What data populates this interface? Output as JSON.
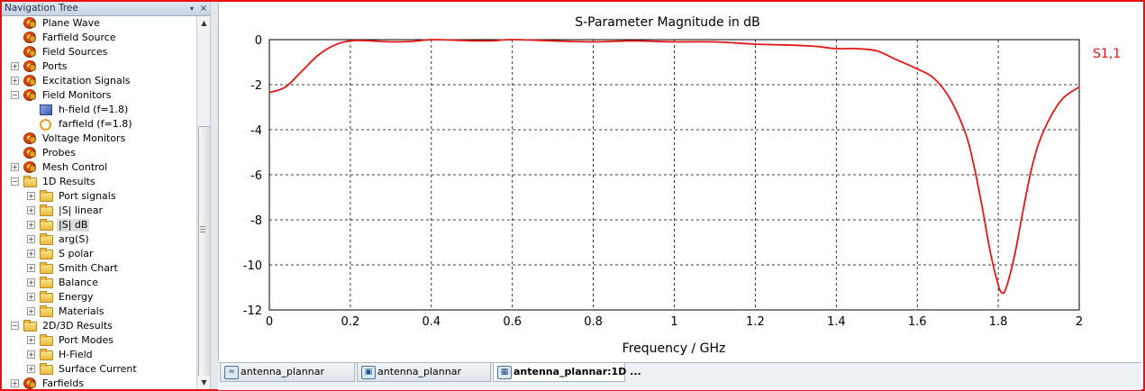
{
  "navigation": {
    "title": "Navigation Tree",
    "menu_glyph": "▾",
    "close_glyph": "×",
    "items": [
      {
        "label": "Plane Wave",
        "icon": "gear-icon",
        "level": 1,
        "expander": ""
      },
      {
        "label": "Farfield Source",
        "icon": "gear-icon",
        "level": 1,
        "expander": ""
      },
      {
        "label": "Field Sources",
        "icon": "gear-icon",
        "level": 1,
        "expander": ""
      },
      {
        "label": "Ports",
        "icon": "gear-icon",
        "level": 1,
        "expander": "+"
      },
      {
        "label": "Excitation Signals",
        "icon": "gear-icon",
        "level": 1,
        "expander": "+"
      },
      {
        "label": "Field Monitors",
        "icon": "gear-icon",
        "level": 1,
        "expander": "−"
      },
      {
        "label": "h-field (f=1.8)",
        "icon": "h-field-monitor-icon",
        "level": 2,
        "expander": ""
      },
      {
        "label": "farfield (f=1.8)",
        "icon": "farfield-monitor-icon",
        "level": 2,
        "expander": ""
      },
      {
        "label": "Voltage Monitors",
        "icon": "gear-icon",
        "level": 1,
        "expander": ""
      },
      {
        "label": "Probes",
        "icon": "gear-icon",
        "level": 1,
        "expander": ""
      },
      {
        "label": "Mesh Control",
        "icon": "gear-icon",
        "level": 1,
        "expander": "+"
      },
      {
        "label": "1D Results",
        "icon": "folder-open-icon",
        "level": 1,
        "expander": "−"
      },
      {
        "label": "Port signals",
        "icon": "folder-icon",
        "level": 2,
        "expander": "+"
      },
      {
        "label": "|S| linear",
        "icon": "folder-icon",
        "level": 2,
        "expander": "+"
      },
      {
        "label": "|S| dB",
        "icon": "folder-icon",
        "level": 2,
        "expander": "+",
        "selected": true
      },
      {
        "label": "arg(S)",
        "icon": "folder-icon",
        "level": 2,
        "expander": "+"
      },
      {
        "label": "S polar",
        "icon": "folder-icon",
        "level": 2,
        "expander": "+"
      },
      {
        "label": "Smith Chart",
        "icon": "folder-icon",
        "level": 2,
        "expander": "+"
      },
      {
        "label": "Balance",
        "icon": "folder-icon",
        "level": 2,
        "expander": "+"
      },
      {
        "label": "Energy",
        "icon": "folder-icon",
        "level": 2,
        "expander": "+"
      },
      {
        "label": "Materials",
        "icon": "folder-icon",
        "level": 2,
        "expander": "+"
      },
      {
        "label": "2D/3D Results",
        "icon": "folder-open-icon",
        "level": 1,
        "expander": "−"
      },
      {
        "label": "Port Modes",
        "icon": "folder-icon",
        "level": 2,
        "expander": "+"
      },
      {
        "label": "H-Field",
        "icon": "folder-icon",
        "level": 2,
        "expander": "+"
      },
      {
        "label": "Surface Current",
        "icon": "folder-icon",
        "level": 2,
        "expander": "+"
      },
      {
        "label": "Farfields",
        "icon": "gear-icon",
        "level": 1,
        "expander": "+"
      }
    ]
  },
  "scrollbar": {
    "up_glyph": "▲",
    "down_glyph": "▼"
  },
  "chart_data": {
    "type": "line",
    "title": "S-Parameter Magnitude in dB",
    "xlabel": "Frequency / GHz",
    "ylabel": "",
    "xlim": [
      0,
      2
    ],
    "ylim": [
      -12,
      0
    ],
    "xticks": [
      "0",
      "0.2",
      "0.4",
      "0.6",
      "0.8",
      "1",
      "1.2",
      "1.4",
      "1.6",
      "1.8",
      "2"
    ],
    "yticks": [
      "0",
      "-2",
      "-4",
      "-6",
      "-8",
      "-10",
      "-12"
    ],
    "grid": true,
    "grid_style": "dashed",
    "legend_placement": "right",
    "series": [
      {
        "name": "S1,1",
        "color": "#e01818",
        "x": [
          0,
          0.04,
          0.08,
          0.12,
          0.16,
          0.2,
          0.25,
          0.3,
          0.35,
          0.4,
          0.45,
          0.5,
          0.55,
          0.6,
          0.7,
          0.8,
          0.9,
          1.0,
          1.1,
          1.2,
          1.3,
          1.35,
          1.4,
          1.45,
          1.5,
          1.55,
          1.6,
          1.64,
          1.68,
          1.72,
          1.74,
          1.76,
          1.78,
          1.8,
          1.81,
          1.82,
          1.84,
          1.86,
          1.88,
          1.9,
          1.93,
          1.96,
          2.0
        ],
        "y": [
          -2.35,
          -2.1,
          -1.4,
          -0.7,
          -0.25,
          -0.05,
          -0.05,
          -0.1,
          -0.08,
          0.0,
          -0.02,
          -0.05,
          -0.05,
          0.0,
          -0.05,
          -0.1,
          -0.05,
          -0.1,
          -0.1,
          -0.2,
          -0.25,
          -0.3,
          -0.4,
          -0.4,
          -0.5,
          -0.9,
          -1.3,
          -1.7,
          -2.6,
          -4.2,
          -5.6,
          -7.4,
          -9.4,
          -10.9,
          -11.25,
          -11.0,
          -9.6,
          -7.7,
          -5.9,
          -4.6,
          -3.4,
          -2.6,
          -2.1
        ]
      }
    ]
  },
  "tabs": [
    {
      "label": "antenna_plannar",
      "icon": "wave-doc-icon",
      "active": false
    },
    {
      "label": "antenna_plannar",
      "icon": "window-doc-icon",
      "active": false
    },
    {
      "label": "antenna_plannar:1D ...",
      "icon": "grid-doc-icon",
      "active": true
    }
  ]
}
